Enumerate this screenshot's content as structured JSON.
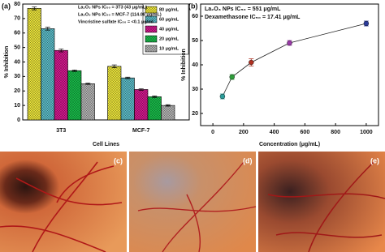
{
  "chart_data": [
    {
      "type": "bar",
      "panel": "(a)",
      "x_label": "Cell Lines",
      "y_label": "% Inhibition",
      "categories": [
        "3T3",
        "MCF-7"
      ],
      "series": [
        {
          "name": "80 μg/mL",
          "color": "#e8e23a",
          "values": [
            77,
            37
          ],
          "errors": [
            1,
            1
          ]
        },
        {
          "name": "60 μg/mL",
          "color": "#5ab8c4",
          "values": [
            63,
            29
          ],
          "errors": [
            1,
            0.5
          ]
        },
        {
          "name": "40 μg/mL",
          "color": "#d0188c",
          "values": [
            48,
            21
          ],
          "errors": [
            1,
            0.5
          ]
        },
        {
          "name": "20 μg/mL",
          "color": "#18b848",
          "values": [
            34,
            16
          ],
          "errors": [
            0.5,
            0.5
          ]
        },
        {
          "name": "10 μg/mL",
          "color": "#b0b0b0",
          "values": [
            25,
            10
          ],
          "errors": [
            0.5,
            0.5
          ]
        }
      ],
      "annotations": [
        "La₂O₃ NPs IC₅₀ = 3T3 (43 μg/mL)",
        "La₂O₃ NPs IC₅₀ = MCF-7 (114.08 μg/mL)",
        "Vincristine sulfate IC₅₀ = <0.1 μg/ml"
      ],
      "ylim": [
        0,
        80
      ],
      "yticks": [
        0,
        10,
        20,
        30,
        40,
        50,
        60,
        70,
        80
      ],
      "legend": "top-right"
    },
    {
      "type": "line",
      "panel": "(b)",
      "x_label": "Concentration (μg/mL)",
      "y_label": "% Inhibition",
      "x": [
        62.5,
        125,
        250,
        500,
        1000
      ],
      "series": [
        {
          "color": "#222222",
          "values": [
            27,
            35,
            41,
            49,
            57
          ],
          "errors": [
            1,
            1,
            1.5,
            1,
            1
          ],
          "point_colors": [
            "#2a9d9a",
            "#2e9e3a",
            "#b03020",
            "#9a3aa8",
            "#2a3a9a"
          ]
        }
      ],
      "annotations": [
        "La₂O₃ NPs IC₅₀ = 551 μg/mL",
        "Dexamethasone IC₅₀ = 17.41 μg/mL"
      ],
      "xlim": [
        -80,
        1080
      ],
      "xticks": [
        0,
        200,
        400,
        600,
        800,
        1000
      ],
      "ylim": [
        15,
        65
      ],
      "yticks": [
        20,
        30,
        40,
        50,
        60
      ]
    }
  ],
  "images": [
    {
      "label": "(c)"
    },
    {
      "label": "(d)"
    },
    {
      "label": "(e)"
    }
  ]
}
